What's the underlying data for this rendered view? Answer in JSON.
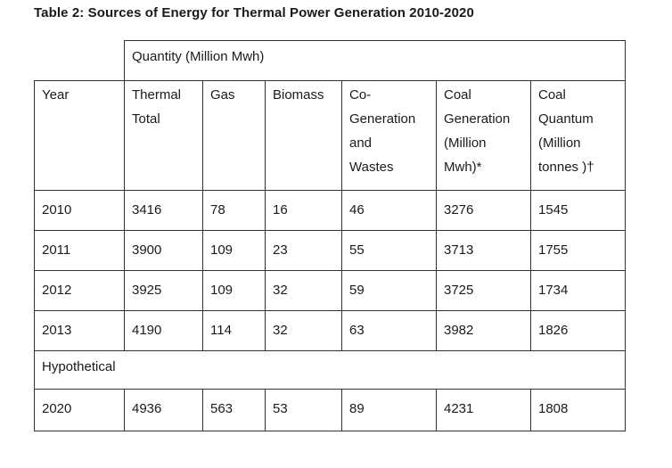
{
  "title": "Table 2: Sources of Energy for Thermal Power Generation 2010-2020",
  "quantity_header": "Quantity (Million Mwh)",
  "columns": {
    "year": [
      "Year"
    ],
    "thermal": [
      "Thermal",
      "Total"
    ],
    "gas": [
      "Gas"
    ],
    "biomass": [
      "Biomass"
    ],
    "cogen": [
      "Co-",
      "Generation",
      "and",
      "Wastes"
    ],
    "coalgen": [
      "Coal",
      "Generation",
      "(Million",
      "Mwh)*"
    ],
    "coalq": [
      "Coal",
      "Quantum",
      "(Million",
      "tonnes )†"
    ]
  },
  "rows": [
    {
      "year": "2010",
      "thermal": "3416",
      "gas": "78",
      "biomass": "16",
      "cogen": "46",
      "coalgen": "3276",
      "coalq": "1545"
    },
    {
      "year": "2011",
      "thermal": "3900",
      "gas": "109",
      "biomass": "23",
      "cogen": "55",
      "coalgen": "3713",
      "coalq": "1755"
    },
    {
      "year": "2012",
      "thermal": "3925",
      "gas": "109",
      "biomass": "32",
      "cogen": "59",
      "coalgen": "3725",
      "coalq": "1734"
    },
    {
      "year": "2013",
      "thermal": "4190",
      "gas": "114",
      "biomass": "32",
      "cogen": "63",
      "coalgen": "3982",
      "coalq": "1826"
    }
  ],
  "hypothetical_label": "Hypothetical",
  "hypothetical_row": {
    "year": "2020",
    "thermal": "4936",
    "gas": "563",
    "biomass": "53",
    "cogen": "89",
    "coalgen": "4231",
    "coalq": "1808"
  }
}
